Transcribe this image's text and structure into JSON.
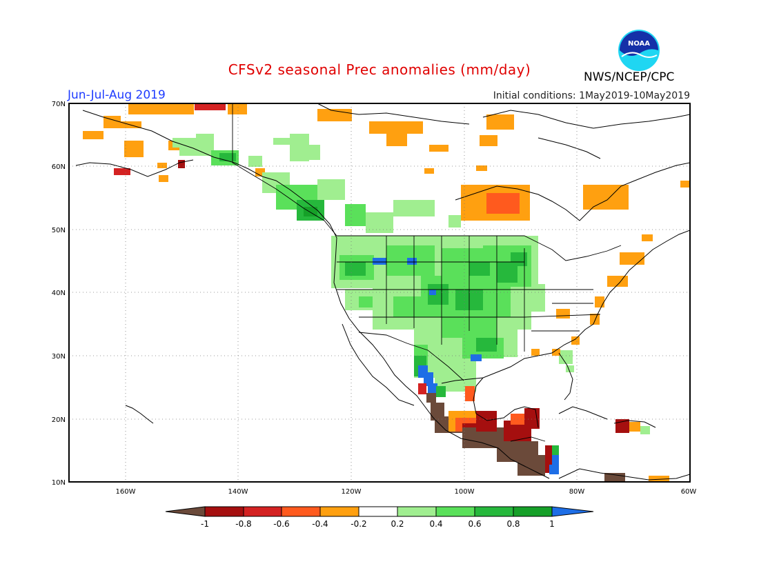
{
  "title": "CFSv2 seasonal Prec anomalies (mm/day)",
  "season": "Jun-Jul-Aug 2019",
  "initial_conditions": "Initial conditions: 1May2019-10May2019",
  "agency": "NWS/NCEP/CPC",
  "logo_text": "NOAA",
  "map": {
    "lon_range": [
      -172,
      -60
    ],
    "lat_range": [
      10,
      70
    ],
    "lon_ticks": [
      "160W",
      "140W",
      "120W",
      "100W",
      "80W",
      "60W"
    ],
    "lat_ticks": [
      "10N",
      "20N",
      "30N",
      "40N",
      "50N",
      "60N",
      "70N"
    ]
  },
  "colorbar": {
    "labels": [
      "-1",
      "-0.8",
      "-0.6",
      "-0.4",
      "-0.2",
      "0.2",
      "0.4",
      "0.6",
      "0.8",
      "1"
    ],
    "colors": {
      "lt_neg1": "#6b4a3a",
      "neg08_neg1": "#a50f0f",
      "neg06_neg08": "#d42222",
      "neg04_neg06": "#ff5a1e",
      "neg02_neg04": "#ffa010",
      "neutral": "#ffffff",
      "pos02_pos04": "#a0ee90",
      "pos04_pos06": "#5ae05a",
      "pos06_pos08": "#26b83c",
      "pos08_pos1": "#16a028",
      "gt_pos1": "#1e6ee6"
    }
  }
}
